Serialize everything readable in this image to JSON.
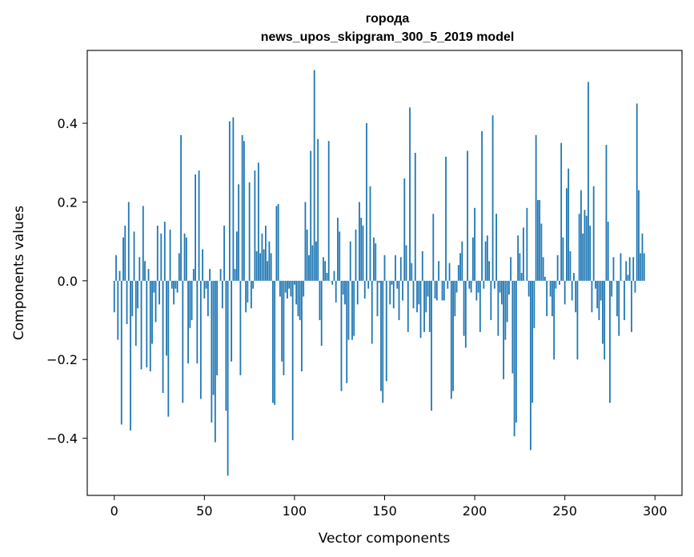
{
  "chart_data": {
    "type": "bar",
    "title": "города",
    "subtitle": "news_upos_skipgram_300_5_2019 model",
    "xlabel": "Vector components",
    "ylabel": "Components values",
    "xlim": [
      -15,
      315
    ],
    "ylim": [
      -0.545,
      0.585
    ],
    "xticks": [
      0,
      50,
      100,
      150,
      200,
      250,
      300
    ],
    "xtick_labels": [
      "0",
      "50",
      "100",
      "150",
      "200",
      "250",
      "300"
    ],
    "yticks": [
      -0.4,
      -0.2,
      0.0,
      0.2,
      0.4
    ],
    "ytick_labels": [
      "−0.4",
      "−0.2",
      "0.0",
      "0.2",
      "0.4"
    ],
    "grid": false,
    "bar_color": "#1f77b4",
    "series": [
      {
        "values": [
          -0.08,
          0.065,
          -0.15,
          0.025,
          -0.365,
          0.11,
          0.14,
          -0.11,
          0.2,
          -0.38,
          -0.09,
          0.125,
          -0.165,
          -0.07,
          0.06,
          -0.225,
          0.19,
          0.05,
          -0.22,
          0.03,
          -0.23,
          -0.16,
          -0.03,
          -0.105,
          0.14,
          -0.06,
          0.12,
          -0.285,
          0.15,
          -0.19,
          -0.345,
          0.13,
          -0.02,
          -0.06,
          -0.02,
          -0.03,
          0.07,
          0.37,
          -0.31,
          0.12,
          0.11,
          -0.21,
          -0.12,
          -0.1,
          0.03,
          0.27,
          -0.21,
          0.28,
          -0.3,
          0.08,
          -0.045,
          -0.02,
          -0.09,
          0.03,
          -0.36,
          -0.29,
          -0.41,
          -0.24,
          0.0,
          0.03,
          -0.07,
          0.14,
          -0.33,
          -0.495,
          0.405,
          -0.205,
          0.415,
          0.03,
          0.125,
          0.245,
          -0.24,
          0.37,
          0.355,
          -0.08,
          -0.055,
          0.25,
          -0.07,
          -0.02,
          0.28,
          0.075,
          0.3,
          0.07,
          0.12,
          0.08,
          0.14,
          0.05,
          0.1,
          0.07,
          -0.31,
          -0.315,
          0.19,
          0.195,
          -0.04,
          -0.205,
          -0.24,
          -0.03,
          -0.045,
          -0.02,
          -0.04,
          -0.405,
          -0.01,
          -0.06,
          -0.09,
          -0.1,
          -0.23,
          -0.04,
          0.2,
          0.13,
          0.065,
          0.33,
          0.09,
          0.535,
          0.1,
          0.36,
          -0.1,
          -0.165,
          0.06,
          0.05,
          0.02,
          0.355,
          0.0,
          -0.01,
          0.025,
          -0.055,
          0.16,
          0.125,
          -0.28,
          -0.035,
          -0.06,
          -0.26,
          -0.15,
          0.1,
          -0.15,
          -0.14,
          0.13,
          -0.06,
          0.2,
          0.16,
          0.14,
          -0.045,
          0.4,
          -0.02,
          0.24,
          -0.16,
          0.11,
          0.095,
          -0.09,
          -0.005,
          -0.28,
          -0.31,
          0.065,
          -0.255,
          0.0,
          -0.06,
          -0.01,
          -0.07,
          0.065,
          -0.02,
          -0.1,
          0.06,
          -0.05,
          0.26,
          0.09,
          -0.13,
          0.44,
          0.045,
          -0.07,
          0.325,
          -0.08,
          -0.06,
          -0.145,
          0.075,
          -0.13,
          -0.08,
          -0.04,
          -0.13,
          -0.33,
          0.17,
          -0.045,
          -0.05,
          0.05,
          0.0,
          -0.05,
          -0.05,
          0.315,
          -0.02,
          0.045,
          -0.3,
          -0.28,
          -0.09,
          -0.03,
          0.04,
          0.07,
          0.1,
          -0.14,
          -0.17,
          0.33,
          -0.02,
          -0.03,
          0.11,
          0.185,
          -0.05,
          -0.03,
          -0.13,
          0.38,
          -0.02,
          0.1,
          0.115,
          0.05,
          -0.1,
          0.42,
          -0.02,
          0.17,
          -0.14,
          -0.03,
          -0.06,
          -0.25,
          -0.15,
          -0.105,
          -0.035,
          0.06,
          -0.235,
          -0.395,
          -0.36,
          0.115,
          0.07,
          0.02,
          0.135,
          0.0,
          0.185,
          -0.04,
          -0.43,
          -0.31,
          -0.12,
          0.37,
          0.205,
          0.205,
          0.145,
          0.06,
          0.01,
          -0.09,
          0.0,
          -0.04,
          -0.09,
          -0.2,
          -0.02,
          0.065,
          -0.01,
          0.35,
          0.11,
          -0.06,
          0.235,
          0.285,
          0.075,
          -0.05,
          0.02,
          -0.08,
          -0.2,
          0.17,
          0.23,
          0.12,
          0.18,
          0.165,
          0.505,
          0.14,
          -0.08,
          0.24,
          -0.02,
          -0.07,
          -0.1,
          -0.05,
          -0.16,
          -0.2,
          0.345,
          0.15,
          -0.31,
          -0.04,
          0.06,
          0.0,
          -0.09,
          -0.14,
          0.07,
          0.0,
          -0.1,
          0.05,
          0.015,
          0.06,
          -0.13,
          0.06,
          -0.03,
          0.45,
          0.23,
          0.07,
          0.12,
          0.07
        ]
      }
    ]
  }
}
